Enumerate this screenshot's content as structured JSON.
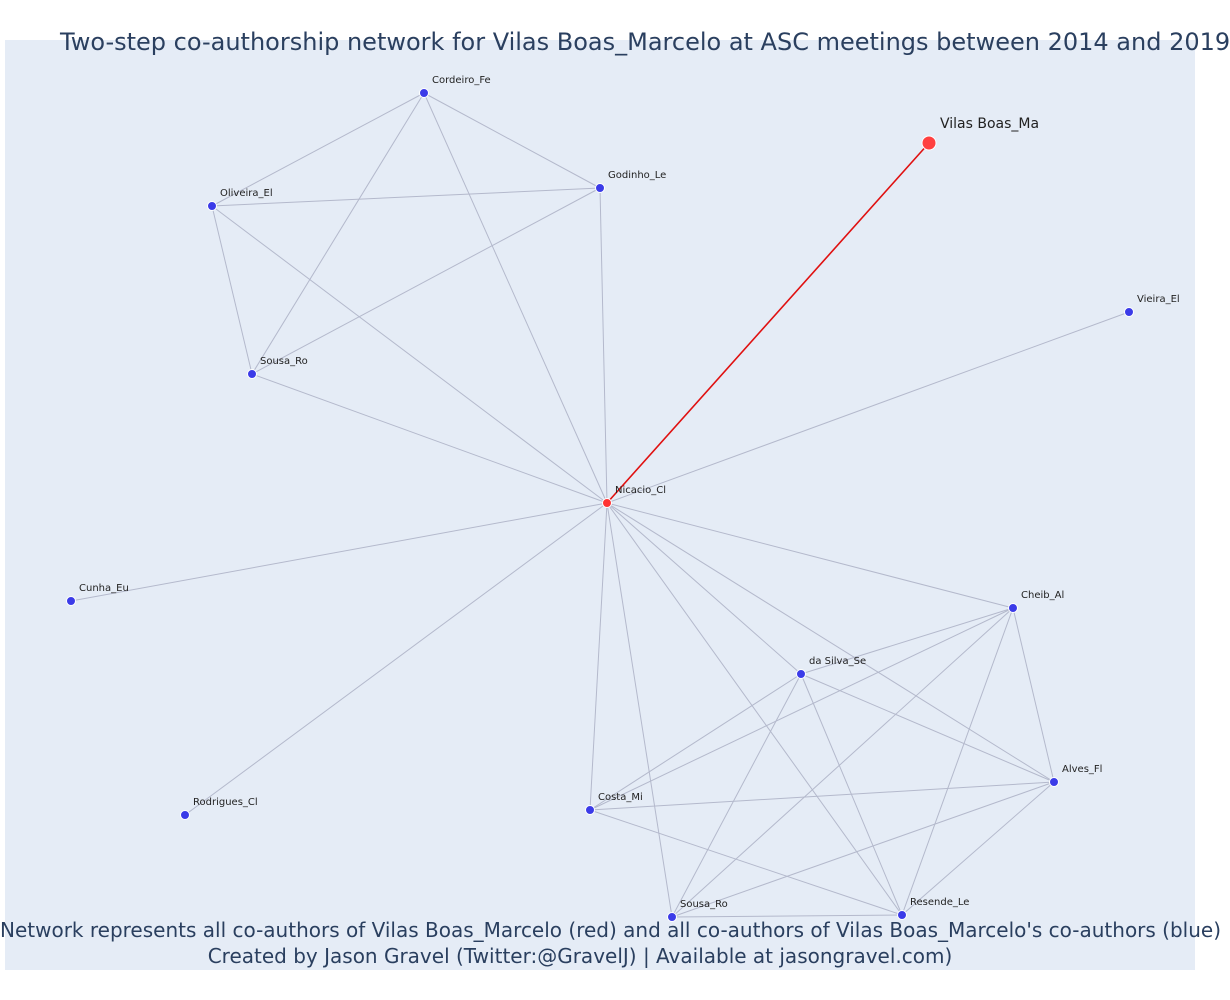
{
  "title": "Two-step co-authorship network for Vilas Boas_Marcelo at ASC meetings between 2014 and 2019",
  "footer_line1": "Network represents all co-authors of Vilas Boas_Marcelo (red) and all co-authors of Vilas Boas_Marcelo's co-authors (blue)",
  "footer_line2": "Created by Jason Gravel (Twitter:@GravelJ) | Available at jasongravel.com)",
  "colors": {
    "background": "#e5ecf6",
    "focal": "#ff4040",
    "first_degree": "#ff3333",
    "second_degree": "#3b3be8",
    "focal_edge": "#e01010",
    "edge": "#b4b9cc"
  },
  "nodes": [
    {
      "id": "vilasboas",
      "label": "Vilas Boas_Ma",
      "role": "focal"
    },
    {
      "id": "nicacio",
      "label": "Nicacio_Cl",
      "role": "coauthor"
    },
    {
      "id": "cordeiro",
      "label": "Cordeiro_Fe",
      "role": "second"
    },
    {
      "id": "godinho",
      "label": "Godinho_Le",
      "role": "second"
    },
    {
      "id": "oliveira",
      "label": "Oliveira_El",
      "role": "second"
    },
    {
      "id": "sousa1",
      "label": "Sousa_Ro",
      "role": "second"
    },
    {
      "id": "vieira",
      "label": "Vieira_El",
      "role": "second"
    },
    {
      "id": "cunha",
      "label": "Cunha_Eu",
      "role": "second"
    },
    {
      "id": "rodrigues",
      "label": "Rodrigues_Cl",
      "role": "second"
    },
    {
      "id": "cheib",
      "label": "Cheib_Al",
      "role": "second"
    },
    {
      "id": "dasilva",
      "label": "da Silva_Se",
      "role": "second"
    },
    {
      "id": "alves",
      "label": "Alves_Fl",
      "role": "second"
    },
    {
      "id": "costa",
      "label": "Costa_Mi",
      "role": "second"
    },
    {
      "id": "sousa2",
      "label": "Sousa_Ro",
      "role": "second"
    },
    {
      "id": "resende",
      "label": "Resende_Le",
      "role": "second"
    }
  ],
  "edges": [
    {
      "from": "vilasboas",
      "to": "nicacio",
      "focal": true
    },
    {
      "from": "nicacio",
      "to": "cordeiro"
    },
    {
      "from": "nicacio",
      "to": "godinho"
    },
    {
      "from": "nicacio",
      "to": "oliveira"
    },
    {
      "from": "nicacio",
      "to": "sousa1"
    },
    {
      "from": "nicacio",
      "to": "vieira"
    },
    {
      "from": "nicacio",
      "to": "cunha"
    },
    {
      "from": "nicacio",
      "to": "rodrigues"
    },
    {
      "from": "nicacio",
      "to": "cheib"
    },
    {
      "from": "nicacio",
      "to": "dasilva"
    },
    {
      "from": "nicacio",
      "to": "alves"
    },
    {
      "from": "nicacio",
      "to": "costa"
    },
    {
      "from": "nicacio",
      "to": "sousa2"
    },
    {
      "from": "nicacio",
      "to": "resende"
    },
    {
      "from": "cordeiro",
      "to": "godinho"
    },
    {
      "from": "cordeiro",
      "to": "oliveira"
    },
    {
      "from": "cordeiro",
      "to": "sousa1"
    },
    {
      "from": "godinho",
      "to": "oliveira"
    },
    {
      "from": "godinho",
      "to": "sousa1"
    },
    {
      "from": "oliveira",
      "to": "sousa1"
    },
    {
      "from": "cheib",
      "to": "dasilva"
    },
    {
      "from": "cheib",
      "to": "alves"
    },
    {
      "from": "cheib",
      "to": "costa"
    },
    {
      "from": "cheib",
      "to": "sousa2"
    },
    {
      "from": "cheib",
      "to": "resende"
    },
    {
      "from": "dasilva",
      "to": "alves"
    },
    {
      "from": "dasilva",
      "to": "costa"
    },
    {
      "from": "dasilva",
      "to": "sousa2"
    },
    {
      "from": "dasilva",
      "to": "resende"
    },
    {
      "from": "alves",
      "to": "costa"
    },
    {
      "from": "alves",
      "to": "sousa2"
    },
    {
      "from": "alves",
      "to": "resende"
    },
    {
      "from": "costa",
      "to": "resende"
    },
    {
      "from": "sousa2",
      "to": "resende"
    }
  ]
}
